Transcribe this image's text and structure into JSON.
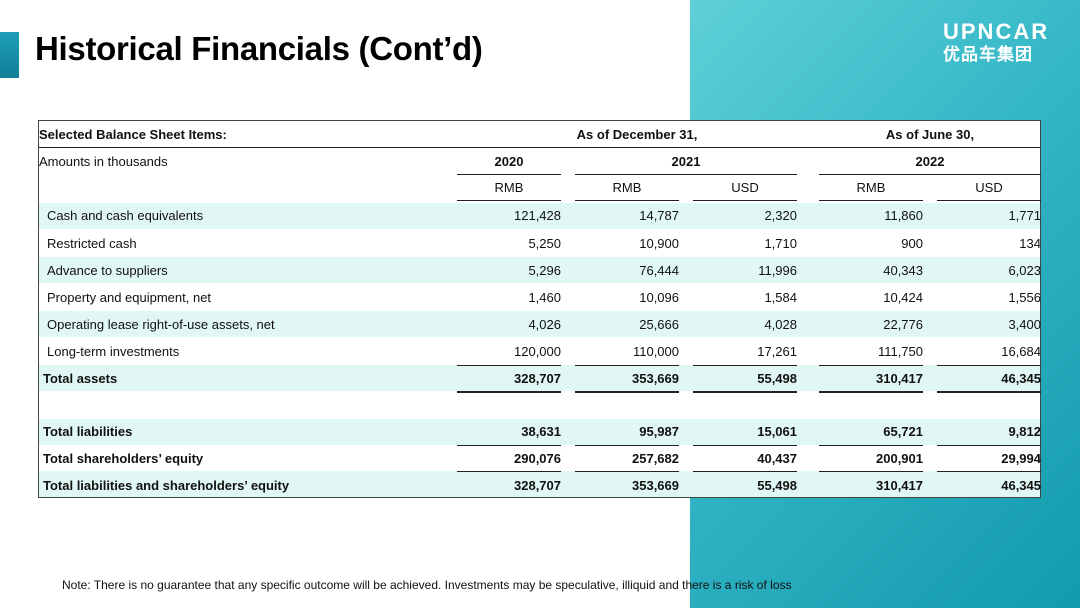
{
  "title": "Historical Financials (Cont’d)",
  "logo": {
    "mark": "UPNCAR",
    "chinese": "优品车集团"
  },
  "table": {
    "header_left_1": "Selected Balance Sheet Items:",
    "header_left_2": "Amounts in thousands",
    "group_dec": "As of December 31,",
    "group_jun": "As of June 30,",
    "year_2020": "2020",
    "year_2021": "2021",
    "year_2022": "2022",
    "currencies": [
      "RMB",
      "RMB",
      "USD",
      "RMB",
      "USD"
    ],
    "rows": [
      {
        "label": "Cash and cash equivalents",
        "values": [
          "121,428",
          "14,787",
          "2,320",
          "11,860",
          "1,771"
        ]
      },
      {
        "label": "Restricted cash",
        "values": [
          "5,250",
          "10,900",
          "1,710",
          "900",
          "134"
        ]
      },
      {
        "label": "Advance to suppliers",
        "values": [
          "5,296",
          "76,444",
          "11,996",
          "40,343",
          "6,023"
        ]
      },
      {
        "label": "Property and equipment, net",
        "values": [
          "1,460",
          "10,096",
          "1,584",
          "10,424",
          "1,556"
        ]
      },
      {
        "label": "Operating lease right-of-use assets, net",
        "values": [
          "4,026",
          "25,666",
          "4,028",
          "22,776",
          "3,400"
        ]
      },
      {
        "label": "Long-term investments",
        "values": [
          "120,000",
          "110,000",
          "17,261",
          "111,750",
          "16,684"
        ]
      },
      {
        "label": "Total assets",
        "values": [
          "328,707",
          "353,669",
          "55,498",
          "310,417",
          "46,345"
        ]
      },
      {
        "label": "Total liabilities",
        "values": [
          "38,631",
          "95,987",
          "15,061",
          "65,721",
          "9,812"
        ]
      },
      {
        "label": "Total shareholders’ equity",
        "values": [
          "290,076",
          "257,682",
          "40,437",
          "200,901",
          "29,994"
        ]
      },
      {
        "label": "Total liabilities and shareholders’ equity",
        "values": [
          "328,707",
          "353,669",
          "55,498",
          "310,417",
          "46,345"
        ]
      }
    ]
  },
  "note": "Note: There is no guarantee that any specific outcome will be achieved. Investments may be speculative, illiquid and there is a risk of loss"
}
